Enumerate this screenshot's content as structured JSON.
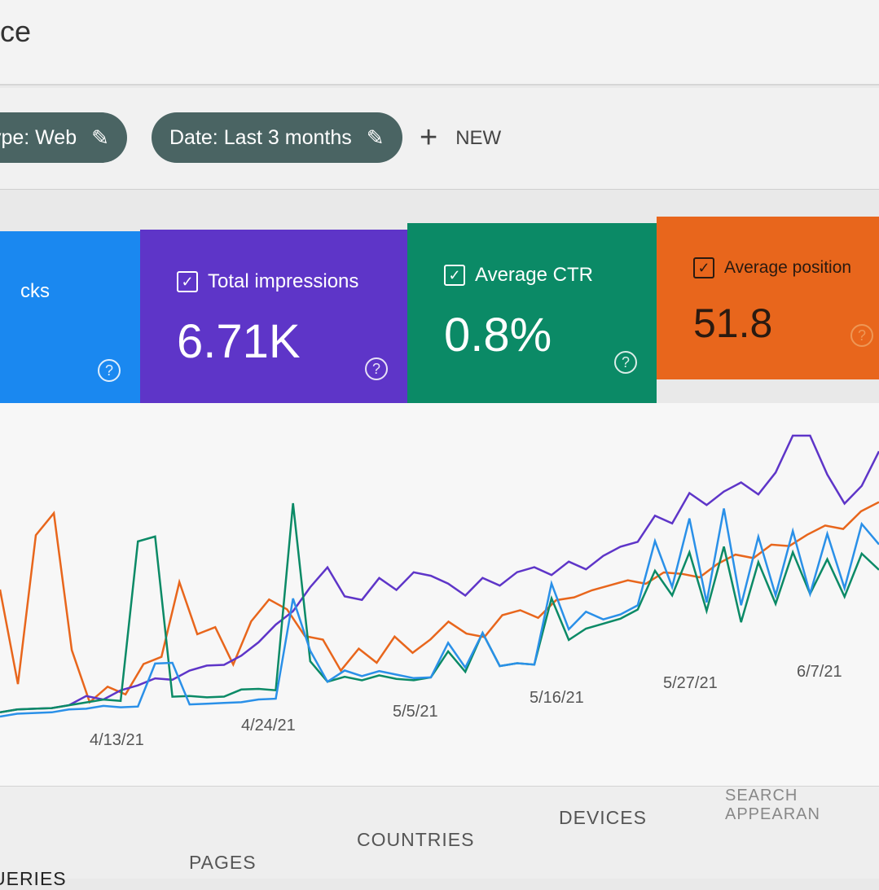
{
  "header": {
    "title": "ce"
  },
  "filters": {
    "chips": [
      {
        "label": "type: Web",
        "icon": "pencil-icon"
      },
      {
        "label": "Date: Last 3 months",
        "icon": "pencil-icon"
      }
    ],
    "new_label": "NEW",
    "new_icon": "plus-icon"
  },
  "cards": [
    {
      "label": "cks",
      "value": "",
      "color": "#1a88f0"
    },
    {
      "label": "Total impressions",
      "value": "6.71K",
      "color": "#5e35c8"
    },
    {
      "label": "Average CTR",
      "value": "0.8%",
      "color": "#0b8a66"
    },
    {
      "label": "Average position",
      "value": "51.8",
      "color": "#e8661c"
    }
  ],
  "chart_data": {
    "type": "line",
    "x_tick_labels": [
      "4/13/21",
      "4/24/21",
      "5/5/21",
      "5/16/21",
      "5/27/21",
      "6/7/21"
    ],
    "grid": false,
    "series": [
      {
        "metric": "Average position",
        "color": "#e8661c",
        "values": [
          60,
          15,
          85,
          95,
          30,
          5,
          12,
          8,
          22,
          25,
          60,
          35,
          38,
          20,
          40,
          50,
          45,
          32,
          30,
          15,
          25,
          18,
          30,
          22,
          28,
          36,
          30,
          28,
          38,
          40,
          36,
          44,
          45,
          48,
          50,
          52,
          50,
          55,
          54,
          52,
          58,
          62,
          60,
          66,
          65,
          70,
          74,
          72,
          80,
          84
        ]
      },
      {
        "metric": "Total impressions",
        "color": "#5e35c8",
        "values": [
          2,
          3,
          3,
          3,
          4,
          8,
          6,
          10,
          12,
          15,
          14,
          18,
          20,
          20,
          24,
          30,
          38,
          44,
          55,
          64,
          50,
          48,
          58,
          52,
          60,
          58,
          54,
          48,
          56,
          52,
          58,
          60,
          56,
          62,
          58,
          64,
          68,
          70,
          82,
          78,
          92,
          86,
          92,
          96,
          90,
          100,
          125,
          128,
          98,
          84,
          92,
          108
        ]
      },
      {
        "metric": "Average CTR",
        "color": "#0b8a66",
        "values": [
          2,
          3,
          3,
          3,
          4,
          5,
          6,
          5,
          80,
          82,
          6,
          6,
          5,
          5,
          8,
          8,
          7,
          95,
          20,
          10,
          12,
          10,
          12,
          10,
          9,
          10,
          22,
          12,
          30,
          14,
          15,
          14,
          45,
          25,
          30,
          32,
          34,
          38,
          56,
          44,
          64,
          36,
          66,
          30,
          58,
          38,
          62,
          42,
          58,
          40,
          60,
          52
        ]
      },
      {
        "metric": "Total clicks",
        "color": "#2a90e8",
        "values": [
          0,
          1,
          1,
          1,
          2,
          2,
          3,
          2,
          2,
          22,
          22,
          2,
          2,
          2,
          2,
          3,
          3,
          50,
          25,
          10,
          15,
          12,
          14,
          12,
          10,
          10,
          26,
          14,
          30,
          14,
          15,
          14,
          52,
          30,
          38,
          34,
          36,
          40,
          70,
          48,
          80,
          40,
          84,
          38,
          70,
          42,
          72,
          42,
          70,
          44,
          74,
          64
        ]
      }
    ]
  },
  "tabs": [
    "UERIES",
    "PAGES",
    "COUNTRIES",
    "DEVICES",
    "SEARCH APPEARAN"
  ]
}
